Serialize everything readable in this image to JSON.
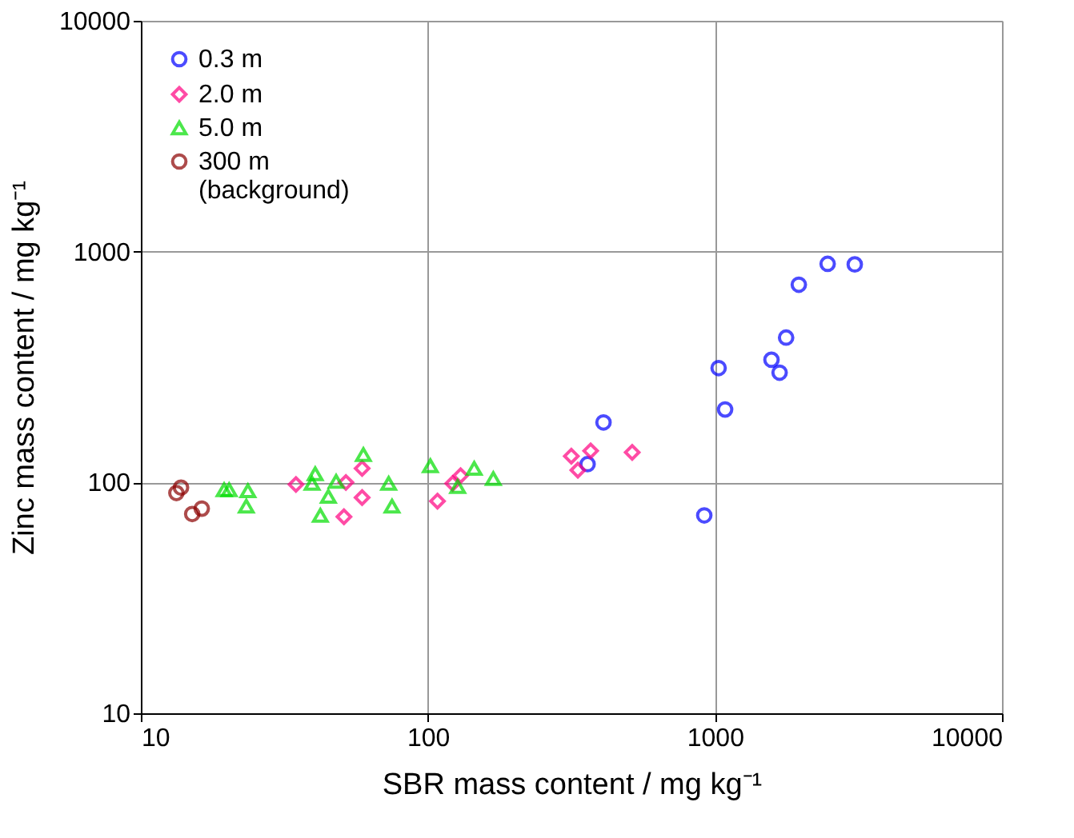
{
  "chart_data": {
    "type": "scatter",
    "xlabel": "SBR mass content / mg kg⁻¹",
    "ylabel": "Zinc mass content / mg kg⁻¹",
    "log": "xy",
    "xlim": [
      10,
      10000
    ],
    "ylim": [
      10,
      10000
    ],
    "xticks": [
      10,
      100,
      1000,
      10000
    ],
    "yticks": [
      10,
      100,
      1000,
      10000
    ],
    "grid": true,
    "legend": "top left",
    "series": [
      {
        "name": "0.3 m",
        "color": "#0000ff",
        "marker": "circle",
        "x": [
          360,
          409,
          1030,
          1085,
          918,
          1574,
          1680,
          1770,
          1960,
          2470,
          3070
        ],
        "values": [
          120,
          182,
          313,
          207,
          72,
          340,
          299,
          424,
          719,
          885,
          880
        ]
      },
      {
        "name": "2.0 m",
        "color": "#ff0080",
        "marker": "diamond",
        "x": [
          316,
          369,
          333,
          515,
          34.7,
          51.8,
          59,
          59,
          51,
          108,
          122,
          130
        ],
        "values": [
          130,
          137,
          113,
          135,
          98,
          100,
          115,
          86,
          71,
          83,
          99,
          107
        ]
      },
      {
        "name": "5.0 m",
        "color": "#00dd00",
        "marker": "triangle",
        "x": [
          19.5,
          20.3,
          23.6,
          23.3,
          40.5,
          39.5,
          47.9,
          45,
          42.2,
          59.6,
          73,
          75,
          102,
          127,
          145,
          169
        ],
        "values": [
          93,
          93,
          92,
          79,
          109,
          99,
          101,
          87,
          72,
          132,
          99,
          79,
          118,
          96,
          115,
          104
        ]
      },
      {
        "name": "300 m\n(background)",
        "color": "#8b0000",
        "marker": "circle",
        "x": [
          13.3,
          13.8,
          15.1,
          16.3
        ],
        "values": [
          90,
          95,
          73,
          77
        ]
      }
    ]
  }
}
